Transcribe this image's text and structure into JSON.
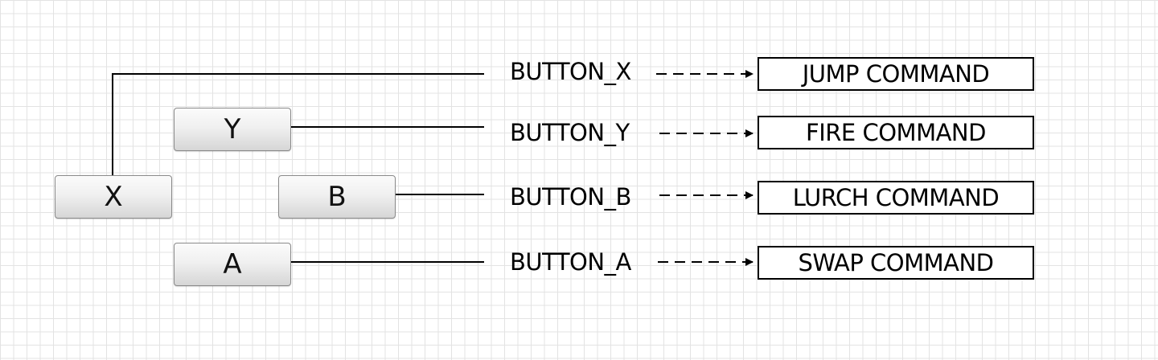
{
  "controller": {
    "buttons": {
      "x": "X",
      "y": "Y",
      "b": "B",
      "a": "A"
    }
  },
  "signals": {
    "x": "BUTTON_X",
    "y": "BUTTON_Y",
    "b": "BUTTON_B",
    "a": "BUTTON_A"
  },
  "commands": {
    "x": "JUMP COMMAND",
    "y": "FIRE COMMAND",
    "b": "LURCH COMMAND",
    "a": "SWAP COMMAND"
  },
  "colors": {
    "background": "#ffffff",
    "grid": "#e3e3e3",
    "line": "#000000",
    "button_border": "#8a8a8a"
  }
}
